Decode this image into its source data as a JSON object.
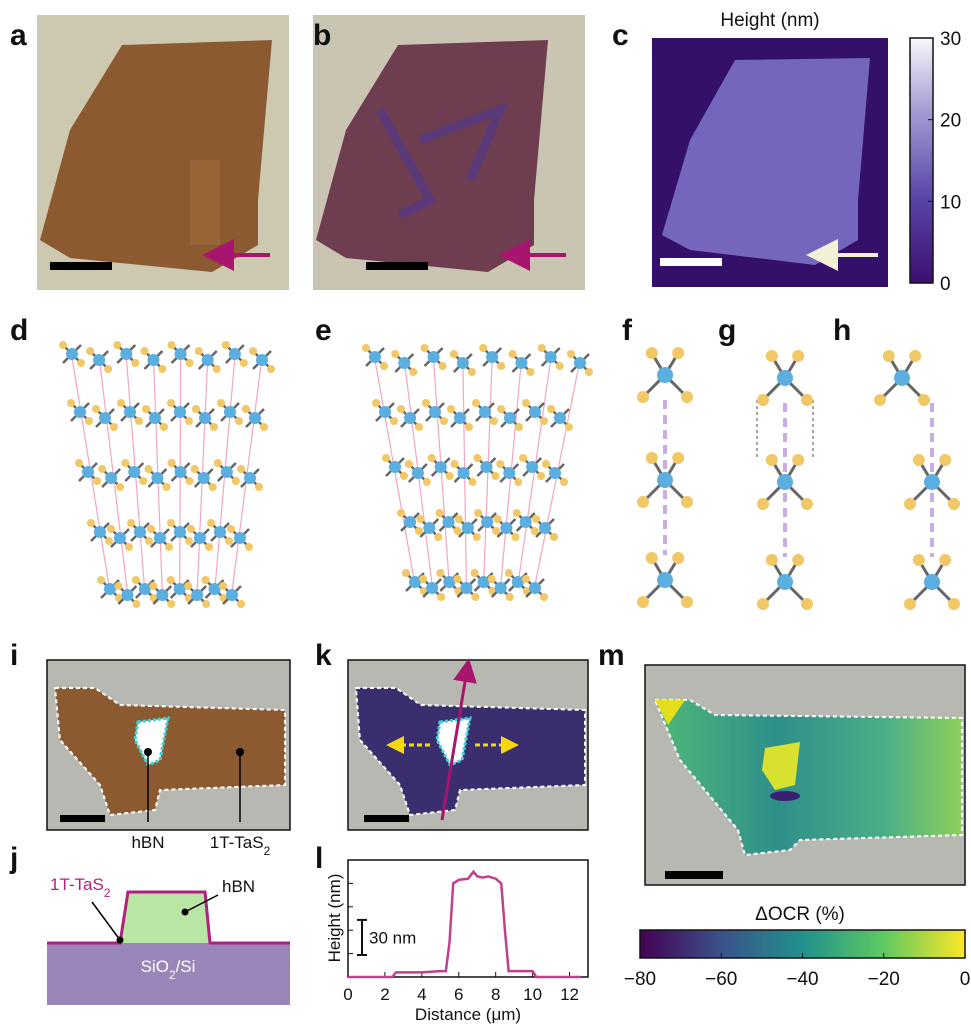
{
  "panel_labels": [
    "a",
    "b",
    "c",
    "d",
    "e",
    "f",
    "g",
    "h",
    "i",
    "j",
    "k",
    "l",
    "m"
  ],
  "panel_c": {
    "title": "Height (nm)",
    "colorbar": {
      "lim": [
        0,
        30
      ],
      "ticks": [
        0,
        10,
        20,
        30
      ]
    }
  },
  "panel_i": {
    "annotations": [
      "hBN",
      {
        "text": "1T-TaS",
        "sub": "2"
      }
    ]
  },
  "panel_j": {
    "labels": [
      {
        "text": "1T-TaS",
        "sub": "2"
      },
      "hBN",
      {
        "text": "SiO",
        "sub": "2",
        "after": "/Si"
      }
    ]
  },
  "chart_data": {
    "type": "line",
    "xlabel": "Distance (μm)",
    "ylabel": "Height (nm)",
    "xlim": [
      0,
      13
    ],
    "xticks": [
      0,
      2,
      4,
      6,
      8,
      10,
      12
    ],
    "ylim": [
      0,
      100
    ],
    "scale_bar": {
      "value": 30,
      "label": "30 nm"
    },
    "x": [
      0,
      1,
      2,
      2.4,
      2.6,
      3,
      4,
      5,
      5.3,
      5.5,
      5.7,
      6,
      6.5,
      6.8,
      7,
      7.3,
      7.6,
      8,
      8.3,
      8.5,
      8.7,
      9,
      9.5,
      10,
      10.2,
      10.5,
      11,
      12,
      12.6
    ],
    "series": [
      {
        "color": "#c0408f",
        "values": [
          0,
          0,
          0,
          0,
          4,
          4,
          4,
          5,
          5,
          30,
          80,
          83,
          84,
          90,
          86,
          85,
          86,
          84,
          80,
          40,
          5,
          5,
          5,
          5,
          0,
          0,
          0,
          0,
          0
        ]
      }
    ]
  },
  "panel_m": {
    "title": "ΔOCR (%)",
    "colorbar": {
      "lim": [
        -80,
        0
      ],
      "ticks": [
        {
          "value": -80,
          "label": "−80"
        },
        {
          "value": -60,
          "label": "−60"
        },
        {
          "value": -40,
          "label": "−40"
        },
        {
          "value": -20,
          "label": "−20"
        },
        0
      ]
    }
  }
}
